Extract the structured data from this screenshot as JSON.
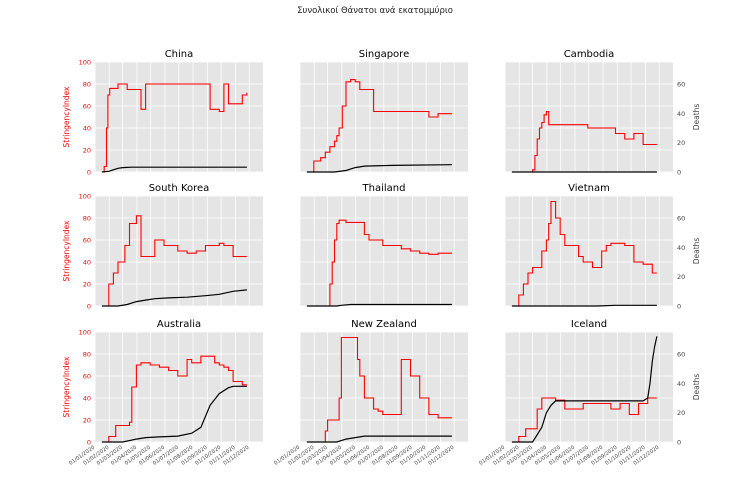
{
  "figure": {
    "title": "Συνολικοί Θάνατοι ανά εκατομμύριο",
    "left_axis_label": "StringencyIndex",
    "right_axis_label": "Deaths",
    "left_ylim": [
      0,
      100
    ],
    "right_ylim": [
      0,
      75
    ],
    "left_ticks": [
      "0",
      "20",
      "40",
      "60",
      "80",
      "100"
    ],
    "right_ticks": [
      "0",
      "20",
      "40",
      "60"
    ],
    "x_ticks": [
      "01/01/2020",
      "01/02/2020",
      "01/03/2020",
      "01/04/2020",
      "01/05/2020",
      "01/06/2020",
      "01/07/2020",
      "01/08/2020",
      "01/09/2020",
      "01/10/2020",
      "01/11/2020",
      "01/12/2020"
    ],
    "colors": {
      "stringency": "#ff0000",
      "deaths": "#000000",
      "panel_bg": "#e5e5e5",
      "grid": "#ffffff"
    }
  },
  "chart_data": [
    {
      "type": "line",
      "title": "China",
      "stringency": {
        "x": [
          15,
          20,
          25,
          28,
          32,
          40,
          50,
          60,
          70,
          100,
          110,
          135,
          160,
          210,
          220,
          240,
          250,
          270,
          280,
          290,
          300,
          320,
          330
        ],
        "y": [
          0,
          5,
          40,
          70,
          76,
          76,
          80,
          80,
          75,
          57,
          80,
          80,
          80,
          80,
          80,
          80,
          57,
          55,
          80,
          62,
          62,
          70,
          72
        ]
      },
      "deaths": {
        "x": [
          15,
          30,
          40,
          50,
          60,
          80,
          330
        ],
        "y": [
          0,
          0.5,
          1.5,
          2.5,
          3,
          3.3,
          3.3
        ]
      }
    },
    {
      "type": "line",
      "title": "Singapore",
      "stringency": {
        "x": [
          15,
          30,
          45,
          55,
          65,
          75,
          80,
          85,
          92,
          100,
          110,
          120,
          130,
          160,
          200,
          230,
          250,
          260,
          270,
          280,
          300,
          330
        ],
        "y": [
          0,
          10,
          13,
          18,
          23,
          28,
          33,
          40,
          60,
          82,
          84,
          82,
          75,
          55,
          55,
          55,
          55,
          55,
          55,
          50,
          53,
          53
        ]
      },
      "deaths": {
        "x": [
          15,
          75,
          100,
          120,
          140,
          200,
          330
        ],
        "y": [
          0,
          0,
          1,
          3,
          4,
          4.5,
          5
        ]
      }
    },
    {
      "type": "line",
      "title": "Cambodia",
      "stringency": {
        "x": [
          15,
          55,
          60,
          65,
          70,
          75,
          80,
          85,
          90,
          95,
          100,
          130,
          160,
          180,
          200,
          210,
          240,
          260,
          280,
          300,
          330
        ],
        "y": [
          0,
          0,
          2,
          15,
          30,
          40,
          45,
          52,
          55,
          43,
          43,
          43,
          43,
          40,
          40,
          40,
          35,
          30,
          35,
          25,
          25
        ]
      },
      "deaths": {
        "x": [
          15,
          330
        ],
        "y": [
          0,
          0
        ]
      }
    },
    {
      "type": "line",
      "title": "South Korea",
      "stringency": {
        "x": [
          15,
          30,
          40,
          50,
          65,
          75,
          90,
          100,
          110,
          130,
          150,
          180,
          200,
          220,
          240,
          250,
          270,
          280,
          300,
          320,
          330
        ],
        "y": [
          0,
          20,
          30,
          40,
          55,
          75,
          82,
          45,
          45,
          60,
          55,
          50,
          48,
          50,
          55,
          55,
          57,
          55,
          45,
          45,
          45
        ]
      },
      "deaths": {
        "x": [
          15,
          50,
          70,
          90,
          110,
          130,
          160,
          200,
          240,
          270,
          300,
          330
        ],
        "y": [
          0,
          0,
          1,
          3,
          4,
          5,
          5.5,
          6,
          7,
          8,
          10,
          11
        ]
      }
    },
    {
      "type": "line",
      "title": "Thailand",
      "stringency": {
        "x": [
          15,
          60,
          65,
          70,
          75,
          80,
          85,
          90,
          100,
          110,
          120,
          130,
          140,
          150,
          180,
          200,
          220,
          240,
          260,
          280,
          300,
          330
        ],
        "y": [
          0,
          0,
          20,
          40,
          60,
          75,
          78,
          78,
          76,
          76,
          76,
          76,
          65,
          60,
          55,
          55,
          52,
          50,
          48,
          47,
          48,
          48
        ]
      },
      "deaths": {
        "x": [
          15,
          80,
          90,
          110,
          330
        ],
        "y": [
          0,
          0,
          0.5,
          1,
          1
        ]
      }
    },
    {
      "type": "line",
      "title": "Vietnam",
      "stringency": {
        "x": [
          15,
          25,
          30,
          40,
          50,
          60,
          70,
          80,
          90,
          95,
          100,
          110,
          120,
          130,
          160,
          170,
          190,
          200,
          210,
          220,
          230,
          260,
          280,
          290,
          300,
          320,
          330
        ],
        "y": [
          0,
          0,
          10,
          20,
          30,
          35,
          35,
          50,
          60,
          75,
          95,
          80,
          65,
          55,
          45,
          40,
          35,
          35,
          50,
          55,
          57,
          55,
          40,
          40,
          38,
          30,
          30
        ]
      },
      "deaths": {
        "x": [
          15,
          200,
          240,
          330
        ],
        "y": [
          0,
          0,
          0.5,
          0.5
        ]
      }
    },
    {
      "type": "line",
      "title": "Australia",
      "stringency": {
        "x": [
          15,
          30,
          45,
          60,
          75,
          80,
          90,
          100,
          110,
          120,
          140,
          160,
          180,
          190,
          200,
          210,
          230,
          260,
          270,
          280,
          290,
          300,
          320,
          330
        ],
        "y": [
          0,
          5,
          15,
          15,
          18,
          50,
          70,
          72,
          72,
          70,
          68,
          65,
          60,
          60,
          75,
          72,
          78,
          72,
          70,
          68,
          65,
          55,
          52,
          52
        ]
      },
      "deaths": {
        "x": [
          15,
          60,
          90,
          110,
          140,
          180,
          210,
          230,
          250,
          270,
          290,
          300,
          310,
          330
        ],
        "y": [
          0,
          0,
          2,
          3,
          3.5,
          4,
          6,
          10,
          25,
          33,
          37,
          38,
          38,
          38
        ]
      }
    },
    {
      "type": "line",
      "title": "New Zealand",
      "stringency": {
        "x": [
          15,
          50,
          55,
          60,
          80,
          85,
          90,
          100,
          120,
          125,
          130,
          140,
          160,
          170,
          180,
          200,
          220,
          240,
          260,
          280,
          300,
          330
        ],
        "y": [
          0,
          0,
          10,
          20,
          20,
          40,
          95,
          95,
          95,
          75,
          60,
          40,
          30,
          28,
          25,
          25,
          75,
          60,
          40,
          25,
          22,
          22
        ]
      },
      "deaths": {
        "x": [
          15,
          80,
          100,
          120,
          140,
          330
        ],
        "y": [
          0,
          0,
          2,
          3,
          4,
          4
        ]
      }
    },
    {
      "type": "line",
      "title": "Iceland",
      "stringency": {
        "x": [
          15,
          30,
          45,
          60,
          65,
          70,
          80,
          90,
          110,
          130,
          150,
          170,
          200,
          230,
          250,
          270,
          290,
          310,
          320,
          330
        ],
        "y": [
          0,
          5,
          12,
          12,
          12,
          30,
          40,
          40,
          38,
          30,
          30,
          35,
          35,
          30,
          35,
          25,
          35,
          40,
          40,
          40
        ]
      },
      "deaths": {
        "x": [
          15,
          60,
          70,
          80,
          90,
          100,
          110,
          130,
          290,
          300,
          310,
          315,
          320,
          325,
          330
        ],
        "y": [
          0,
          0,
          5,
          10,
          20,
          25,
          28,
          28,
          28,
          28,
          30,
          40,
          55,
          65,
          72
        ]
      }
    }
  ]
}
